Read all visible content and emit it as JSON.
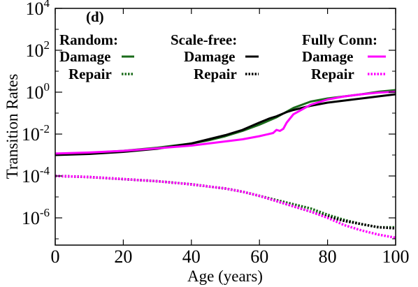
{
  "chart_data": {
    "type": "line",
    "panel_label": "(d)",
    "xlabel": "Age (years)",
    "ylabel": "Transition Rates",
    "xlim": [
      0,
      100
    ],
    "ylim_log10": [
      -7.3,
      4
    ],
    "y_scale": "log",
    "x_ticks": [
      0,
      20,
      40,
      60,
      80,
      100
    ],
    "y_ticks": [
      {
        "base": "10",
        "exp": "4",
        "value": 4
      },
      {
        "base": "10",
        "exp": "2",
        "value": 2
      },
      {
        "base": "10",
        "exp": "0",
        "value": 0
      },
      {
        "base": "10",
        "exp": "-2",
        "value": -2
      },
      {
        "base": "10",
        "exp": "-4",
        "value": -4
      },
      {
        "base": "10",
        "exp": "-6",
        "value": -6
      }
    ],
    "grid": false,
    "legend_groups": [
      {
        "title": "Random:",
        "damage_label": "Damage",
        "repair_label": "Repair",
        "color": "#1a6b1a"
      },
      {
        "title": "Scale-free:",
        "damage_label": "Damage",
        "repair_label": "Repair",
        "color": "#000000"
      },
      {
        "title": "Fully Conn:",
        "damage_label": "Damage",
        "repair_label": "Repair",
        "color": "#ff00ff"
      }
    ],
    "series": [
      {
        "name": "Random Damage",
        "network": "Random",
        "kind": "Damage",
        "style": "solid",
        "color": "#1a6b1a",
        "x": [
          0,
          10,
          20,
          30,
          40,
          45,
          50,
          55,
          60,
          65,
          70,
          75,
          80,
          85,
          90,
          95,
          100
        ],
        "log10_y": [
          -2.95,
          -2.9,
          -2.8,
          -2.65,
          -2.45,
          -2.3,
          -2.1,
          -1.85,
          -1.55,
          -1.2,
          -0.75,
          -0.45,
          -0.3,
          -0.2,
          -0.1,
          0.02,
          0.1
        ]
      },
      {
        "name": "Scale-free Damage",
        "network": "Scale-free",
        "kind": "Damage",
        "style": "solid",
        "color": "#000000",
        "x": [
          0,
          10,
          20,
          30,
          40,
          45,
          50,
          55,
          60,
          63,
          65,
          68,
          70,
          75,
          80,
          85,
          90,
          95,
          100
        ],
        "log10_y": [
          -3.0,
          -2.95,
          -2.85,
          -2.7,
          -2.45,
          -2.25,
          -2.05,
          -1.8,
          -1.45,
          -1.25,
          -1.15,
          -0.95,
          -0.85,
          -0.65,
          -0.5,
          -0.4,
          -0.3,
          -0.2,
          -0.1
        ]
      },
      {
        "name": "Fully Conn Damage",
        "network": "Fully Conn",
        "kind": "Damage",
        "style": "solid",
        "color": "#ff00ff",
        "x": [
          0,
          10,
          20,
          30,
          40,
          45,
          50,
          55,
          60,
          64,
          65,
          66,
          67,
          68,
          70,
          75,
          80,
          85,
          90,
          95,
          100
        ],
        "log10_y": [
          -2.93,
          -2.88,
          -2.8,
          -2.68,
          -2.55,
          -2.45,
          -2.35,
          -2.25,
          -2.1,
          -1.95,
          -1.8,
          -1.85,
          -1.75,
          -1.45,
          -1.05,
          -0.6,
          -0.35,
          -0.2,
          -0.1,
          -0.02,
          0.02
        ]
      },
      {
        "name": "Random Repair",
        "network": "Random",
        "kind": "Repair",
        "style": "dotted",
        "color": "#1a6b1a",
        "x": [
          0,
          10,
          20,
          30,
          40,
          50,
          55,
          60,
          65,
          70,
          75,
          80,
          85,
          90,
          95,
          100
        ],
        "log10_y": [
          -4.0,
          -4.05,
          -4.15,
          -4.25,
          -4.4,
          -4.6,
          -4.75,
          -4.95,
          -5.15,
          -5.35,
          -5.55,
          -5.85,
          -6.1,
          -6.3,
          -6.45,
          -6.45
        ]
      },
      {
        "name": "Scale-free Repair",
        "network": "Scale-free",
        "kind": "Repair",
        "style": "dotted",
        "color": "#000000",
        "x": [
          0,
          10,
          20,
          30,
          40,
          50,
          55,
          60,
          65,
          70,
          75,
          80,
          85,
          90,
          95,
          100
        ],
        "log10_y": [
          -4.0,
          -4.05,
          -4.15,
          -4.25,
          -4.4,
          -4.6,
          -4.75,
          -4.95,
          -5.2,
          -5.45,
          -5.7,
          -5.95,
          -6.15,
          -6.3,
          -6.45,
          -6.5
        ]
      },
      {
        "name": "Fully Conn Repair",
        "network": "Fully Conn",
        "kind": "Repair",
        "style": "dotted",
        "color": "#ff00ff",
        "x": [
          0,
          10,
          20,
          30,
          40,
          50,
          55,
          60,
          65,
          70,
          75,
          80,
          85,
          90,
          95,
          100
        ],
        "log10_y": [
          -4.0,
          -4.05,
          -4.15,
          -4.25,
          -4.4,
          -4.6,
          -4.75,
          -4.95,
          -5.2,
          -5.45,
          -5.7,
          -6.0,
          -6.35,
          -6.6,
          -6.8,
          -6.95
        ]
      }
    ]
  }
}
